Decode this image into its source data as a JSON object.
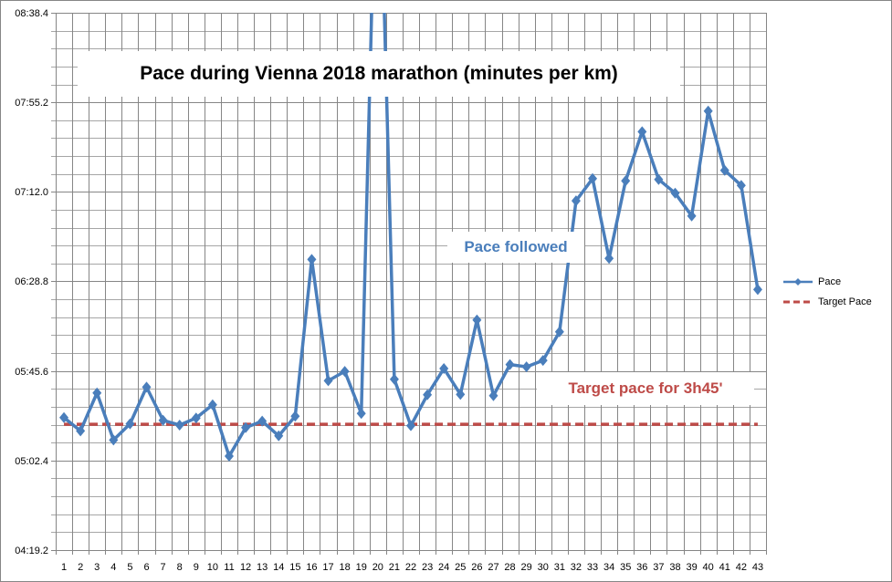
{
  "chart_data": {
    "type": "line",
    "title": "Pace during Vienna 2018 marathon (minutes per km)",
    "xlabel": "",
    "ylabel": "",
    "x": [
      1,
      2,
      3,
      4,
      5,
      6,
      7,
      8,
      9,
      10,
      11,
      12,
      13,
      14,
      15,
      16,
      17,
      18,
      19,
      20,
      21,
      22,
      23,
      24,
      25,
      26,
      27,
      28,
      29,
      30,
      31,
      32,
      33,
      34,
      35,
      36,
      37,
      38,
      39,
      40,
      41,
      42,
      43
    ],
    "y_tick_labels": [
      "04:19.2",
      "05:02.4",
      "05:45.6",
      "06:28.8",
      "07:12.0",
      "07:55.2",
      "08:38.4"
    ],
    "y_tick_seconds": [
      259.2,
      302.4,
      345.6,
      388.8,
      432.0,
      475.2,
      518.4
    ],
    "ylim_seconds": [
      259.2,
      518.4
    ],
    "grid": {
      "major_y": true,
      "minor_y": true,
      "x": true
    },
    "legend_position": "right",
    "series": [
      {
        "name": "Pace",
        "color": "#4a7ebb",
        "style": "solid-with-diamond-markers",
        "values_seconds": [
          323.1,
          316.7,
          335.0,
          312.3,
          320.1,
          337.8,
          321.8,
          319.5,
          322.9,
          329.3,
          304.5,
          318.3,
          321.4,
          314.3,
          323.8,
          399.4,
          340.9,
          345.4,
          325.1,
          634.0,
          341.6,
          319.2,
          334.1,
          346.8,
          334.3,
          370.2,
          333.7,
          348.7,
          347.6,
          350.7,
          364.5,
          427.7,
          438.4,
          399.9,
          437.3,
          461.0,
          438.0,
          431.4,
          420.4,
          471.0,
          442.4,
          435.1,
          384.9
        ],
        "values_mmss": [
          "05:23.1",
          "05:16.7",
          "05:35.0",
          "05:12.3",
          "05:20.1",
          "05:37.8",
          "05:21.8",
          "05:19.5",
          "05:22.9",
          "05:29.3",
          "05:04.5",
          "05:18.3",
          "05:21.4",
          "05:14.3",
          "05:23.8",
          "06:39.4",
          "05:40.9",
          "05:45.4",
          "05:25.1",
          "10:34.0 (off-chart)",
          "05:41.6",
          "05:19.2",
          "05:34.1",
          "05:46.8",
          "05:34.3",
          "06:10.2",
          "05:33.7",
          "05:48.7",
          "05:47.6",
          "05:50.7",
          "06:04.5",
          "07:07.7",
          "07:18.4",
          "06:39.9",
          "07:17.3",
          "07:41.0",
          "07:18.0",
          "07:11.4",
          "07:00.4",
          "07:51.0",
          "07:22.4",
          "07:15.1",
          "06:24.9"
        ]
      },
      {
        "name": "Target Pace",
        "color": "#be4b48",
        "style": "dashed",
        "value_seconds": 319.9,
        "value_mmss": "05:19.9"
      }
    ],
    "annotations": [
      {
        "text": "Pace followed",
        "color": "#4a7ebb"
      },
      {
        "text": "Target pace for 3h45'",
        "color": "#be4b48"
      }
    ]
  },
  "title": "Pace during Vienna 2018 marathon (minutes per km)",
  "annotations": {
    "pace_followed": "Pace followed",
    "target_pace": "Target pace for 3h45'"
  },
  "legend": {
    "items": [
      {
        "label": "Pace",
        "color": "#4a7ebb"
      },
      {
        "label": "Target Pace",
        "color": "#be4b48"
      }
    ]
  },
  "colors": {
    "pace_line": "#4a7ebb",
    "target_line": "#be4b48",
    "grid_major": "#868686",
    "grid_minor": "#a6a6a6"
  }
}
